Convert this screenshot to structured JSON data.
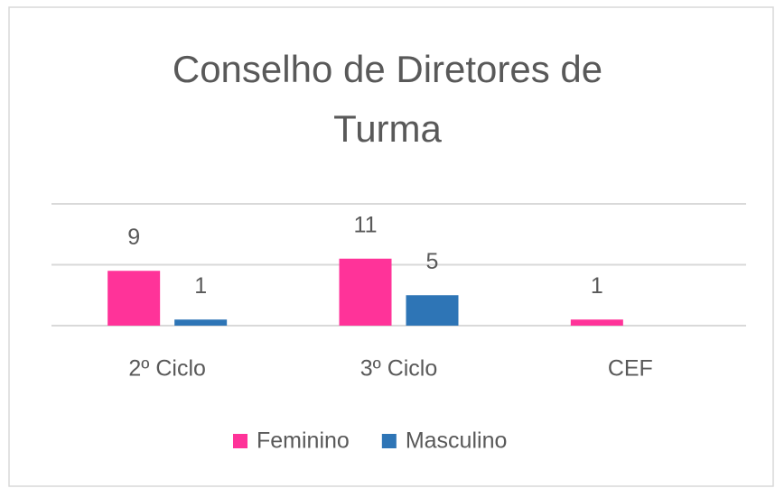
{
  "chart_data": {
    "type": "bar",
    "title": "Conselho de Diretores de Turma",
    "categories": [
      "2º Ciclo",
      "3º Ciclo",
      "CEF"
    ],
    "series": [
      {
        "name": "Feminino",
        "color": "#ff3399",
        "values": [
          9,
          11,
          1
        ]
      },
      {
        "name": "Masculino",
        "color": "#2e75b6",
        "values": [
          1,
          5,
          null
        ]
      }
    ],
    "ylim": [
      0,
      20
    ],
    "yticks": [
      0,
      10,
      20
    ],
    "grid": true,
    "legend": "bottom"
  }
}
